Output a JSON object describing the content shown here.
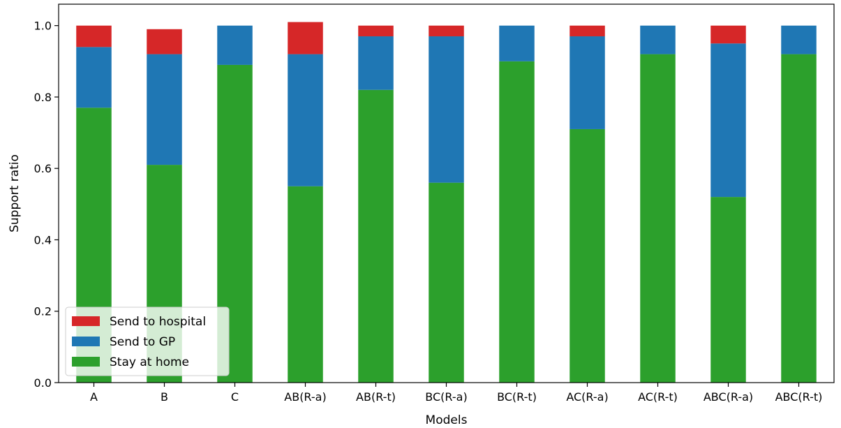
{
  "chart_data": {
    "type": "bar",
    "stacked": true,
    "categories": [
      "A",
      "B",
      "C",
      "AB(R-a)",
      "AB(R-t)",
      "BC(R-a)",
      "BC(R-t)",
      "AC(R-a)",
      "AC(R-t)",
      "ABC(R-a)",
      "ABC(R-t)"
    ],
    "series": [
      {
        "name": "Stay at home",
        "color": "#2ca02c",
        "values": [
          0.77,
          0.61,
          0.89,
          0.55,
          0.82,
          0.56,
          0.9,
          0.71,
          0.92,
          0.52,
          0.92
        ]
      },
      {
        "name": "Send to GP",
        "color": "#1f77b4",
        "values": [
          0.17,
          0.31,
          0.11,
          0.37,
          0.15,
          0.41,
          0.1,
          0.26,
          0.08,
          0.43,
          0.08
        ]
      },
      {
        "name": "Send to hospital",
        "color": "#d62728",
        "values": [
          0.06,
          0.07,
          0.0,
          0.09,
          0.03,
          0.03,
          0.0,
          0.03,
          0.0,
          0.05,
          0.0
        ]
      }
    ],
    "xlabel": "Models",
    "ylabel": "Support ratio",
    "ylim": [
      0,
      1.06
    ],
    "yticks": [
      "0.0",
      "0.2",
      "0.4",
      "0.6",
      "0.8",
      "1.0"
    ],
    "grid": false,
    "legend": {
      "placement": "lower-left",
      "entries": [
        "Send to hospital",
        "Send to GP",
        "Stay at home"
      ]
    }
  }
}
